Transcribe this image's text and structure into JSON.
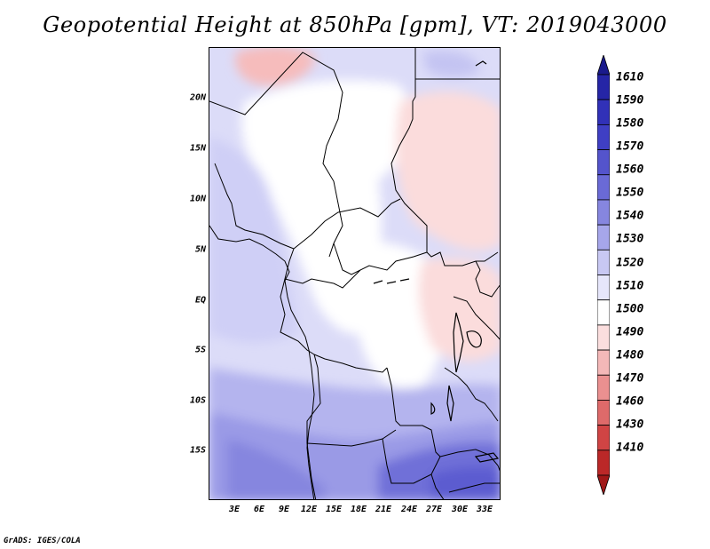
{
  "title": "Geopotential Height at 850hPa [gpm], VT: 2019043000",
  "credit": "GrADS: IGES/COLA",
  "map": {
    "lat_labels": [
      "20N",
      "15N",
      "10N",
      "5N",
      "EQ",
      "5S",
      "10S",
      "15S"
    ],
    "lat_values": [
      20,
      15,
      10,
      5,
      0,
      -5,
      -10,
      -15
    ],
    "lon_labels": [
      "3E",
      "6E",
      "9E",
      "12E",
      "15E",
      "18E",
      "21E",
      "24E",
      "27E",
      "30E",
      "33E"
    ],
    "lon_values": [
      3,
      6,
      9,
      12,
      15,
      18,
      21,
      24,
      27,
      30,
      33
    ],
    "lon_range": [
      0,
      35
    ],
    "lat_range": [
      -20,
      25
    ]
  },
  "colorbar": {
    "levels": [
      "1610",
      "1590",
      "1580",
      "1570",
      "1560",
      "1550",
      "1540",
      "1530",
      "1520",
      "1510",
      "1500",
      "1490",
      "1480",
      "1470",
      "1460",
      "1430",
      "1410"
    ],
    "colors": [
      "#1a1a8c",
      "#2525a6",
      "#3131b8",
      "#3f3fc4",
      "#5454cc",
      "#6a6ad6",
      "#8686df",
      "#a6a6ea",
      "#c8c8f3",
      "#e6e6fb",
      "#ffffff",
      "#fbdede",
      "#f4b8b8",
      "#ea9090",
      "#de6a6a",
      "#d04444",
      "#bb2828",
      "#a01818"
    ]
  }
}
